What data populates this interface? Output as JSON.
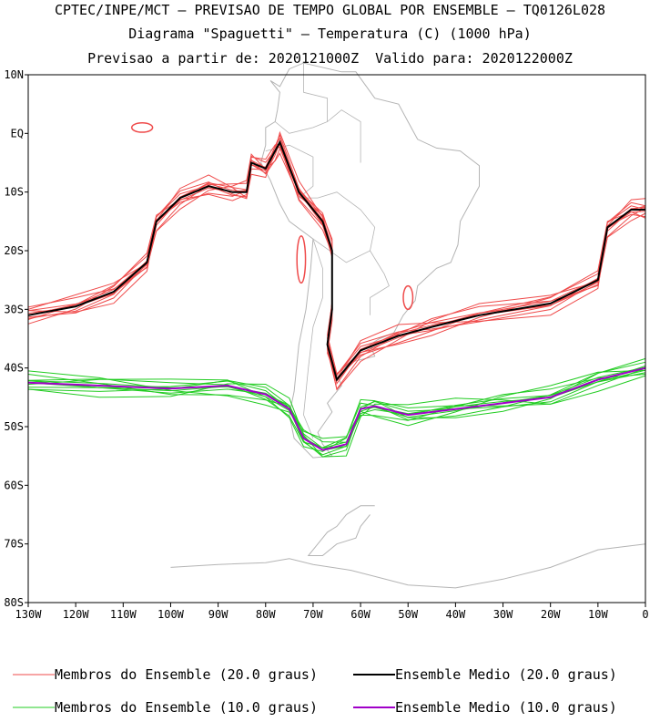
{
  "header": {
    "line1": "CPTEC/INPE/MCT – PREVISAO DE TEMPO GLOBAL POR ENSEMBLE – TQ0126L028",
    "line2": "Diagrama \"Spaguetti\" – Temperatura (C) (1000 hPa)",
    "line3": "Previsao a partir de: 2020121000Z  Valido para: 2020122000Z"
  },
  "chart_data": {
    "type": "line",
    "map": "South America and adjacent oceans",
    "xlim": [
      -130,
      0
    ],
    "ylim": [
      -80,
      10
    ],
    "x_ticks": [
      "130W",
      "120W",
      "110W",
      "100W",
      "90W",
      "80W",
      "70W",
      "60W",
      "50W",
      "40W",
      "30W",
      "20W",
      "10W",
      "0"
    ],
    "y_ticks": [
      "10N",
      "EQ",
      "10S",
      "20S",
      "30S",
      "40S",
      "50S",
      "60S",
      "70S",
      "80S"
    ],
    "grid": false,
    "colors": {
      "member20": "#ef4b4b",
      "mean20": "#000000",
      "member10": "#22cc22",
      "mean10": "#a000c8",
      "coast": "#b4b4b4"
    },
    "series": [
      {
        "name": "Ensemble Medio (20.0 graus)",
        "points": [
          [
            -130,
            -31
          ],
          [
            -120,
            -29.5
          ],
          [
            -112,
            -27
          ],
          [
            -105,
            -22
          ],
          [
            -103,
            -15
          ],
          [
            -98,
            -11
          ],
          [
            -92,
            -9
          ],
          [
            -87,
            -10
          ],
          [
            -84,
            -10
          ],
          [
            -83,
            -5
          ],
          [
            -80,
            -6
          ],
          [
            -78,
            -3
          ],
          [
            -77,
            -1.5
          ],
          [
            -73,
            -10
          ],
          [
            -68,
            -15
          ],
          [
            -66,
            -20
          ],
          [
            -66,
            -30
          ],
          [
            -67,
            -36
          ],
          [
            -65,
            -42
          ],
          [
            -60,
            -37
          ],
          [
            -52,
            -34.5
          ],
          [
            -45,
            -33
          ],
          [
            -35,
            -31
          ],
          [
            -20,
            -29
          ],
          [
            -10,
            -25
          ],
          [
            -8,
            -16
          ],
          [
            -3,
            -13
          ],
          [
            0,
            -13
          ]
        ]
      },
      {
        "name": "Ensemble Medio (10.0 graus)",
        "points": [
          [
            -130,
            -42.5
          ],
          [
            -115,
            -43
          ],
          [
            -100,
            -43.5
          ],
          [
            -88,
            -43
          ],
          [
            -80,
            -44.5
          ],
          [
            -75,
            -47
          ],
          [
            -72,
            -52
          ],
          [
            -68,
            -54
          ],
          [
            -63,
            -53
          ],
          [
            -60,
            -47
          ],
          [
            -57,
            -46.5
          ],
          [
            -50,
            -48
          ],
          [
            -40,
            -47
          ],
          [
            -30,
            -46
          ],
          [
            -20,
            -45
          ],
          [
            -10,
            -42
          ],
          [
            0,
            -40
          ]
        ]
      }
    ]
  },
  "legend": [
    {
      "label": "Membros do Ensemble (20.0 graus)",
      "color": "#ef4b4b"
    },
    {
      "label": "Ensemble Medio (20.0 graus)",
      "color": "#000000"
    },
    {
      "label": "Membros do Ensemble (10.0 graus)",
      "color": "#22cc22"
    },
    {
      "label": "Ensemble Medio (10.0 graus)",
      "color": "#a000c8"
    }
  ]
}
